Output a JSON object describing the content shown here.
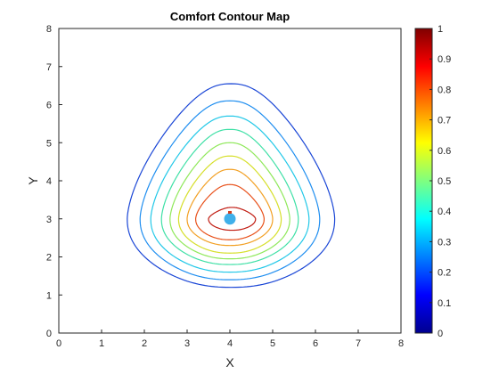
{
  "chart_data": {
    "type": "contour",
    "title": "Comfort Contour Map",
    "xlabel": "X",
    "ylabel": "Y",
    "xlim": [
      0,
      8
    ],
    "ylim": [
      0,
      8
    ],
    "xticks": [
      "0",
      "1",
      "2",
      "3",
      "4",
      "5",
      "6",
      "7",
      "8"
    ],
    "yticks": [
      "0",
      "1",
      "2",
      "3",
      "4",
      "5",
      "6",
      "7",
      "8"
    ],
    "grid": false,
    "colormap": "jet",
    "colorbar": {
      "range": [
        0,
        1
      ],
      "ticks": [
        "0",
        "0.1",
        "0.2",
        "0.3",
        "0.4",
        "0.5",
        "0.6",
        "0.7",
        "0.8",
        "0.9",
        "1"
      ]
    },
    "contours": [
      {
        "level": 0.1,
        "color": "#1a46d6",
        "xmin": 1.6,
        "xmax": 6.45,
        "ymin": 1.2,
        "ymax": 6.55,
        "y_widest": 3.0
      },
      {
        "level": 0.2,
        "color": "#1f8ef0",
        "xmin": 1.9,
        "xmax": 6.1,
        "ymin": 1.4,
        "ymax": 6.1,
        "y_widest": 3.0
      },
      {
        "level": 0.3,
        "color": "#22c8e8",
        "xmin": 2.15,
        "xmax": 5.85,
        "ymin": 1.6,
        "ymax": 5.7,
        "y_widest": 3.0
      },
      {
        "level": 0.4,
        "color": "#3fe0a6",
        "xmin": 2.4,
        "xmax": 5.6,
        "ymin": 1.8,
        "ymax": 5.35,
        "y_widest": 3.0
      },
      {
        "level": 0.5,
        "color": "#8fe85a",
        "xmin": 2.6,
        "xmax": 5.4,
        "ymin": 1.95,
        "ymax": 5.0,
        "y_widest": 3.0
      },
      {
        "level": 0.6,
        "color": "#d6df2a",
        "xmin": 2.8,
        "xmax": 5.2,
        "ymin": 2.1,
        "ymax": 4.65,
        "y_widest": 3.0
      },
      {
        "level": 0.7,
        "color": "#f2a024",
        "xmin": 3.0,
        "xmax": 5.0,
        "ymin": 2.3,
        "ymax": 4.3,
        "y_widest": 3.0
      },
      {
        "level": 0.8,
        "color": "#e8501a",
        "xmin": 3.2,
        "xmax": 4.8,
        "ymin": 2.45,
        "ymax": 3.9,
        "y_widest": 3.0
      },
      {
        "level": 0.9,
        "color": "#c01a10",
        "xmin": 3.5,
        "xmax": 4.6,
        "ymin": 2.7,
        "ymax": 3.3,
        "y_widest": 3.0
      }
    ],
    "markers": [
      {
        "name": "source-point",
        "x": 4.0,
        "y": 3.0,
        "color": "#3fb0ea"
      },
      {
        "name": "peak-marker",
        "x": 4.0,
        "y": 3.17,
        "color": "#d04020"
      }
    ]
  }
}
